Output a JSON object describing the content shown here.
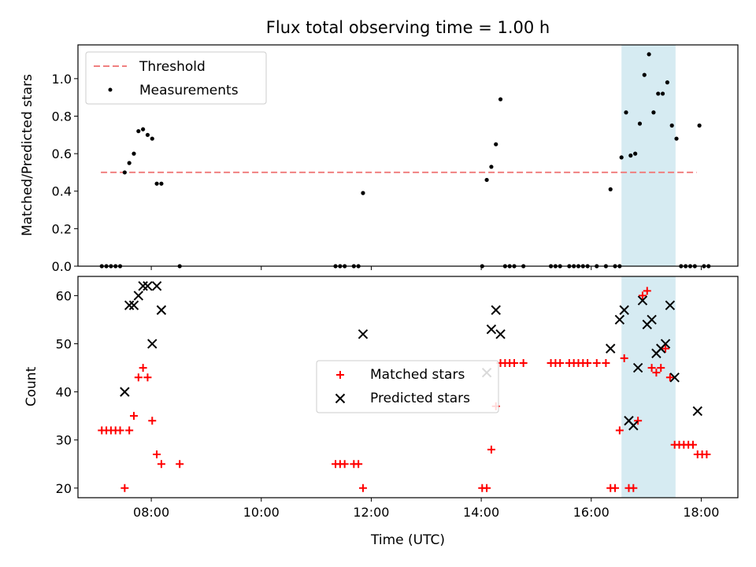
{
  "title": "Flux total observing time = 1.00 h",
  "colors": {
    "threshold": "#f08080",
    "measurements": "#000000",
    "matched": "#ff0000",
    "predicted": "#000000",
    "highlight": "#add8e6"
  },
  "chart_data": [
    {
      "type": "scatter",
      "ylabel": "Matched/Predicted stars",
      "xlim": [
        "06:40",
        "18:40"
      ],
      "ylim": [
        0,
        1.18
      ],
      "y_ticks": [
        "0.0",
        "0.2",
        "0.4",
        "0.6",
        "0.8",
        "1.0"
      ],
      "highlight_span": [
        "16:33",
        "17:32"
      ],
      "legend": {
        "placement": "upper-left",
        "entries": [
          "Threshold",
          "Measurements"
        ]
      },
      "threshold": {
        "name": "Threshold",
        "x": [
          "07:05",
          "17:55"
        ],
        "y": 0.5
      },
      "series": [
        {
          "name": "Measurements",
          "points": [
            [
              "07:06",
              0
            ],
            [
              "07:11",
              0
            ],
            [
              "07:16",
              0
            ],
            [
              "07:21",
              0
            ],
            [
              "07:26",
              0
            ],
            [
              "07:31",
              0.5
            ],
            [
              "07:36",
              0.55
            ],
            [
              "07:41",
              0.6
            ],
            [
              "07:46",
              0.72
            ],
            [
              "07:51",
              0.73
            ],
            [
              "07:56",
              0.7
            ],
            [
              "08:01",
              0.68
            ],
            [
              "08:06",
              0.44
            ],
            [
              "08:11",
              0.44
            ],
            [
              "08:31",
              0
            ],
            [
              "11:21",
              0
            ],
            [
              "11:26",
              0
            ],
            [
              "11:31",
              0
            ],
            [
              "11:41",
              0
            ],
            [
              "11:46",
              0
            ],
            [
              "11:51",
              0.39
            ],
            [
              "14:01",
              0
            ],
            [
              "14:06",
              0.46
            ],
            [
              "14:11",
              0.53
            ],
            [
              "14:16",
              0.65
            ],
            [
              "14:21",
              0.89
            ],
            [
              "14:26",
              0
            ],
            [
              "14:31",
              0
            ],
            [
              "14:36",
              0
            ],
            [
              "14:46",
              0
            ],
            [
              "15:16",
              0
            ],
            [
              "15:21",
              0
            ],
            [
              "15:26",
              0
            ],
            [
              "15:36",
              0
            ],
            [
              "15:41",
              0
            ],
            [
              "15:46",
              0
            ],
            [
              "15:51",
              0
            ],
            [
              "15:56",
              0
            ],
            [
              "16:06",
              0
            ],
            [
              "16:16",
              0
            ],
            [
              "16:26",
              0
            ],
            [
              "16:31",
              0
            ],
            [
              "16:21",
              0.41
            ],
            [
              "16:33",
              0.58
            ],
            [
              "16:38",
              0.82
            ],
            [
              "16:43",
              0.59
            ],
            [
              "16:48",
              0.6
            ],
            [
              "16:53",
              0.76
            ],
            [
              "16:58",
              1.02
            ],
            [
              "17:03",
              1.13
            ],
            [
              "17:08",
              0.82
            ],
            [
              "17:13",
              0.92
            ],
            [
              "17:18",
              0.92
            ],
            [
              "17:23",
              0.98
            ],
            [
              "17:28",
              0.75
            ],
            [
              "17:33",
              0.68
            ],
            [
              "17:38",
              0
            ],
            [
              "17:43",
              0
            ],
            [
              "17:48",
              0
            ],
            [
              "17:53",
              0
            ],
            [
              "17:58",
              0.75
            ],
            [
              "18:03",
              0
            ],
            [
              "18:08",
              0
            ]
          ]
        }
      ]
    },
    {
      "type": "scatter",
      "xlabel": "Time (UTC)",
      "ylabel": "Count",
      "xlim": [
        "06:40",
        "18:40"
      ],
      "ylim": [
        18,
        64
      ],
      "x_ticks": [
        "08:00",
        "10:00",
        "12:00",
        "14:00",
        "16:00",
        "18:00"
      ],
      "y_ticks": [
        "20",
        "30",
        "40",
        "50",
        "60"
      ],
      "highlight_span": [
        "16:33",
        "17:32"
      ],
      "legend": {
        "placement": "center",
        "entries": [
          "Matched stars",
          "Predicted stars"
        ]
      },
      "series": [
        {
          "name": "Matched stars",
          "marker": "plus",
          "points": [
            [
              "07:06",
              32
            ],
            [
              "07:11",
              32
            ],
            [
              "07:16",
              32
            ],
            [
              "07:21",
              32
            ],
            [
              "07:26",
              32
            ],
            [
              "07:31",
              20
            ],
            [
              "07:36",
              32
            ],
            [
              "07:41",
              35
            ],
            [
              "07:46",
              43
            ],
            [
              "07:51",
              45
            ],
            [
              "07:56",
              43
            ],
            [
              "08:01",
              34
            ],
            [
              "08:06",
              27
            ],
            [
              "08:11",
              25
            ],
            [
              "08:31",
              25
            ],
            [
              "11:21",
              25
            ],
            [
              "11:26",
              25
            ],
            [
              "11:31",
              25
            ],
            [
              "11:41",
              25
            ],
            [
              "11:46",
              25
            ],
            [
              "11:51",
              20
            ],
            [
              "14:01",
              20
            ],
            [
              "14:06",
              20
            ],
            [
              "14:11",
              28
            ],
            [
              "14:16",
              37
            ],
            [
              "14:21",
              46
            ],
            [
              "14:26",
              46
            ],
            [
              "14:31",
              46
            ],
            [
              "14:36",
              46
            ],
            [
              "14:46",
              46
            ],
            [
              "15:16",
              46
            ],
            [
              "15:21",
              46
            ],
            [
              "15:26",
              46
            ],
            [
              "15:36",
              46
            ],
            [
              "15:41",
              46
            ],
            [
              "15:46",
              46
            ],
            [
              "15:51",
              46
            ],
            [
              "15:56",
              46
            ],
            [
              "16:06",
              46
            ],
            [
              "16:16",
              46
            ],
            [
              "16:21",
              20
            ],
            [
              "16:26",
              20
            ],
            [
              "16:31",
              32
            ],
            [
              "16:36",
              47
            ],
            [
              "16:41",
              20
            ],
            [
              "16:46",
              20
            ],
            [
              "16:51",
              34
            ],
            [
              "16:56",
              60
            ],
            [
              "17:01",
              61
            ],
            [
              "17:06",
              45
            ],
            [
              "17:11",
              44
            ],
            [
              "17:16",
              45
            ],
            [
              "17:21",
              49
            ],
            [
              "17:26",
              43
            ],
            [
              "17:31",
              29
            ],
            [
              "17:36",
              29
            ],
            [
              "17:41",
              29
            ],
            [
              "17:46",
              29
            ],
            [
              "17:51",
              29
            ],
            [
              "17:56",
              27
            ],
            [
              "18:01",
              27
            ],
            [
              "18:06",
              27
            ]
          ]
        },
        {
          "name": "Predicted stars",
          "marker": "x",
          "points": [
            [
              "07:31",
              40
            ],
            [
              "07:36",
              58
            ],
            [
              "07:41",
              58
            ],
            [
              "07:46",
              60
            ],
            [
              "07:51",
              62
            ],
            [
              "07:56",
              62
            ],
            [
              "08:01",
              50
            ],
            [
              "08:06",
              62
            ],
            [
              "08:11",
              57
            ],
            [
              "11:51",
              52
            ],
            [
              "14:06",
              44
            ],
            [
              "14:11",
              53
            ],
            [
              "14:16",
              57
            ],
            [
              "14:21",
              52
            ],
            [
              "16:21",
              49
            ],
            [
              "16:31",
              55
            ],
            [
              "16:36",
              57
            ],
            [
              "16:41",
              34
            ],
            [
              "16:46",
              33
            ],
            [
              "16:51",
              45
            ],
            [
              "16:56",
              59
            ],
            [
              "17:01",
              54
            ],
            [
              "17:06",
              55
            ],
            [
              "17:11",
              48
            ],
            [
              "17:16",
              49
            ],
            [
              "17:21",
              50
            ],
            [
              "17:26",
              58
            ],
            [
              "17:31",
              43
            ],
            [
              "17:56",
              36
            ]
          ]
        }
      ]
    }
  ]
}
